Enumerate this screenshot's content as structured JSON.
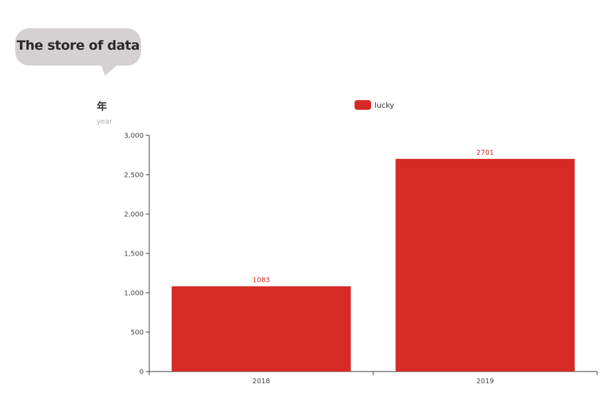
{
  "bubble": {
    "text": "The store of data"
  },
  "chart_data": {
    "type": "bar",
    "title": "年",
    "subtitle": "year",
    "categories": [
      "2018",
      "2019"
    ],
    "series": [
      {
        "name": "lucky",
        "values": [
          1083,
          2701
        ],
        "color": "#d62a26"
      }
    ],
    "ylim": [
      0,
      3000
    ],
    "yticks": [
      0,
      500,
      1000,
      1500,
      2000,
      2500,
      3000
    ],
    "ytick_labels": [
      "0",
      "500",
      "1,000",
      "1,500",
      "2,000",
      "2,500",
      "3,000"
    ],
    "data_labels": [
      "1083",
      "2701"
    ],
    "legend_position": "top-center",
    "grid": false
  }
}
